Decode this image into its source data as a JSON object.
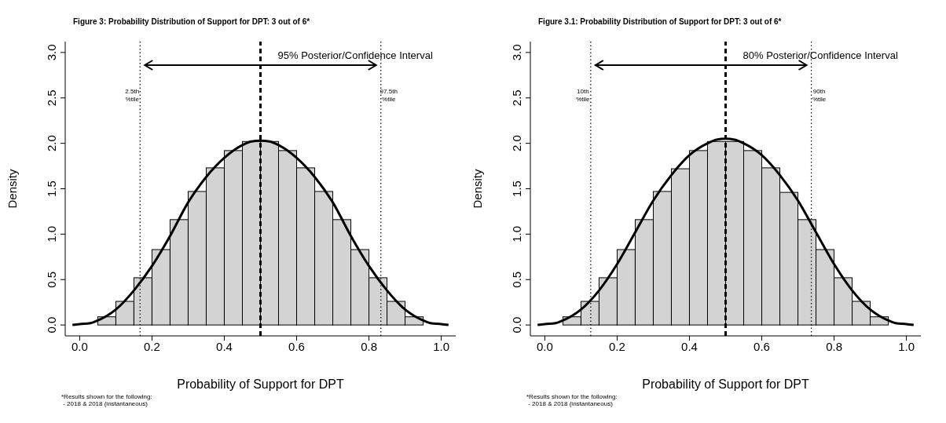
{
  "chart_data": [
    {
      "type": "histogram",
      "title": "Figure 3: Probability Distribution of Support for DPT: 3 out of 6*",
      "xlabel": "Probability of Support for DPT",
      "ylabel": "Density",
      "bins": [
        0.05,
        0.1,
        0.15,
        0.2,
        0.25,
        0.3,
        0.35,
        0.4,
        0.45,
        0.5,
        0.55,
        0.6,
        0.65,
        0.7,
        0.75,
        0.8,
        0.85,
        0.9,
        0.95
      ],
      "values": [
        0.09,
        0.26,
        0.52,
        0.83,
        1.16,
        1.47,
        1.73,
        1.92,
        2.02,
        2.02,
        1.92,
        1.73,
        1.47,
        1.16,
        0.83,
        0.52,
        0.26,
        0.09
      ],
      "color": "#d3d3d3",
      "series": [
        {
          "type": "line",
          "color": "#000000",
          "x": [
            -0.02,
            0.0,
            0.03,
            0.05,
            0.075,
            0.1,
            0.15,
            0.2,
            0.25,
            0.3,
            0.35,
            0.4,
            0.45,
            0.475,
            0.5,
            0.525,
            0.55,
            0.6,
            0.65,
            0.7,
            0.75,
            0.8,
            0.85,
            0.9,
            0.925,
            0.95,
            0.97,
            1.0,
            1.02
          ],
          "values": [
            0,
            0.01,
            0.02,
            0.05,
            0.1,
            0.17,
            0.38,
            0.65,
            0.98,
            1.35,
            1.63,
            1.84,
            1.98,
            2.02,
            2.03,
            2.02,
            1.98,
            1.84,
            1.63,
            1.35,
            0.98,
            0.65,
            0.38,
            0.17,
            0.1,
            0.05,
            0.02,
            0.01,
            0
          ]
        }
      ],
      "xlim": [
        -0.04,
        1.04
      ],
      "ylim": [
        -0.12,
        3.12
      ],
      "xticks": [
        {
          "value": 0,
          "label": "0.0"
        },
        {
          "value": 0.2,
          "label": "0.2"
        },
        {
          "value": 0.4,
          "label": "0.4"
        },
        {
          "value": 0.6,
          "label": "0.6"
        },
        {
          "value": 0.8,
          "label": "0.8"
        },
        {
          "value": 1,
          "label": "1.0"
        }
      ],
      "yticks": [
        {
          "value": 0,
          "label": "0.0"
        },
        {
          "value": 0.5,
          "label": "0.5"
        },
        {
          "value": 1,
          "label": "1.0"
        },
        {
          "value": 1.5,
          "label": "1.5"
        },
        {
          "value": 2,
          "label": "2.0"
        },
        {
          "value": 2.5,
          "label": "2.5"
        },
        {
          "value": 3,
          "label": "3.0"
        }
      ],
      "ref_lines": [
        {
          "axis": "x",
          "value": 0.167,
          "label": "2.5th %tile",
          "color": "#000000",
          "line_style": "dotted"
        },
        {
          "axis": "x",
          "value": 0.5,
          "label": null,
          "color": "#000000",
          "line_style": "dashed"
        },
        {
          "axis": "x",
          "value": 0.833,
          "label": "97.5th %tile",
          "color": "#000000",
          "line_style": "dotted"
        }
      ],
      "annotations": [
        "95% Posterior/Confidence Interval",
        "*Results shown for the following:",
        " - 2018 & 2018 (instantaneous)"
      ]
    },
    {
      "type": "histogram",
      "title": "Figure 3.1: Probability Distribution of Support for DPT: 3 out of 6*",
      "xlabel": "Probability of Support for DPT",
      "ylabel": "Density",
      "bins": [
        0.05,
        0.1,
        0.15,
        0.2,
        0.25,
        0.3,
        0.35,
        0.4,
        0.45,
        0.5,
        0.55,
        0.6,
        0.65,
        0.7,
        0.75,
        0.8,
        0.85,
        0.9,
        0.95
      ],
      "values": [
        0.09,
        0.26,
        0.52,
        0.83,
        1.16,
        1.47,
        1.72,
        1.92,
        2.02,
        2.02,
        1.92,
        1.73,
        1.46,
        1.16,
        0.83,
        0.52,
        0.26,
        0.09
      ],
      "color": "#d3d3d3",
      "series": [
        {
          "type": "line",
          "color": "#000000",
          "x": [
            -0.02,
            0.0,
            0.03,
            0.05,
            0.075,
            0.1,
            0.15,
            0.2,
            0.25,
            0.3,
            0.35,
            0.4,
            0.45,
            0.475,
            0.5,
            0.525,
            0.55,
            0.6,
            0.65,
            0.7,
            0.75,
            0.8,
            0.85,
            0.9,
            0.925,
            0.95,
            0.97,
            1.0,
            1.02
          ],
          "values": [
            0,
            0.01,
            0.02,
            0.05,
            0.1,
            0.17,
            0.38,
            0.67,
            1.02,
            1.37,
            1.65,
            1.87,
            2.0,
            2.04,
            2.05,
            2.04,
            2.0,
            1.87,
            1.65,
            1.37,
            1.02,
            0.67,
            0.38,
            0.17,
            0.1,
            0.05,
            0.02,
            0.01,
            0
          ]
        }
      ],
      "xlim": [
        -0.04,
        1.04
      ],
      "ylim": [
        -0.12,
        3.12
      ],
      "xticks": [
        {
          "value": 0,
          "label": "0.0"
        },
        {
          "value": 0.2,
          "label": "0.2"
        },
        {
          "value": 0.4,
          "label": "0.4"
        },
        {
          "value": 0.6,
          "label": "0.6"
        },
        {
          "value": 0.8,
          "label": "0.8"
        },
        {
          "value": 1,
          "label": "1.0"
        }
      ],
      "yticks": [
        {
          "value": 0,
          "label": "0.0"
        },
        {
          "value": 0.5,
          "label": "0.5"
        },
        {
          "value": 1,
          "label": "1.0"
        },
        {
          "value": 1.5,
          "label": "1.5"
        },
        {
          "value": 2,
          "label": "2.0"
        },
        {
          "value": 2.5,
          "label": "2.5"
        },
        {
          "value": 3,
          "label": "3.0"
        }
      ],
      "ref_lines": [
        {
          "axis": "x",
          "value": 0.127,
          "label": "10th %tile",
          "color": "#000000",
          "line_style": "dotted"
        },
        {
          "axis": "x",
          "value": 0.5,
          "label": null,
          "color": "#000000",
          "line_style": "dashed"
        },
        {
          "axis": "x",
          "value": 0.737,
          "label": "90th %tile",
          "color": "#000000",
          "line_style": "dotted"
        }
      ],
      "annotations": [
        "80% Posterior/Confidence Interval",
        "*Results shown for the following:",
        " - 2018 & 2018 (instantaneous)"
      ]
    }
  ]
}
